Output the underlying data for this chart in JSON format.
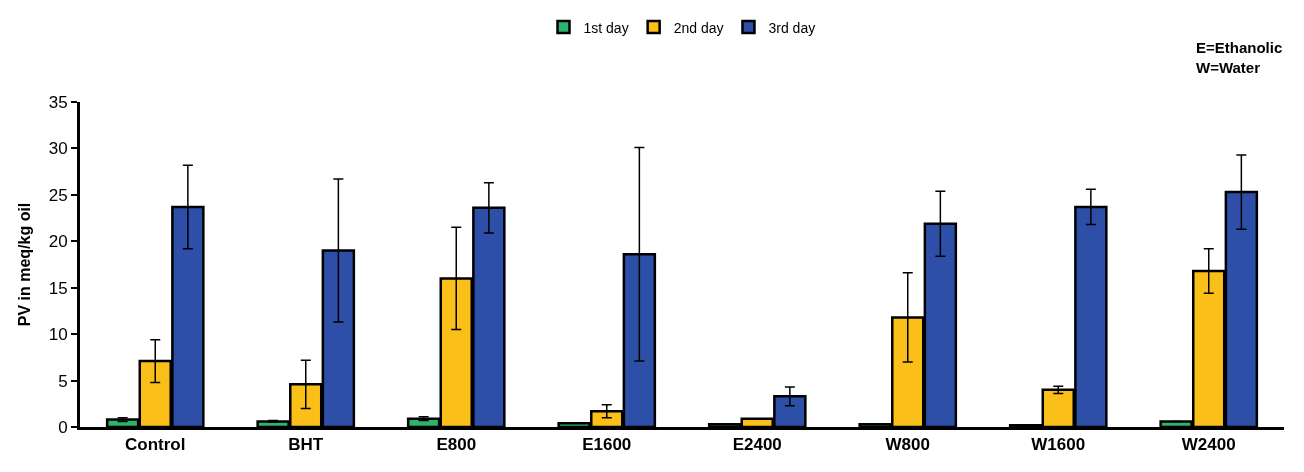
{
  "chart_data": {
    "type": "bar",
    "ylabel": "PV in meq/kg oil",
    "categories": [
      "Control",
      "BHT",
      "E800",
      "E1600",
      "E2400",
      "W800",
      "W1600",
      "W2400"
    ],
    "series": [
      {
        "name": "1st day",
        "color": "#2db36b",
        "values": [
          0.8,
          0.6,
          0.9,
          0.4,
          0.3,
          0.3,
          0.2,
          0.6
        ],
        "errors": [
          0.2,
          0.1,
          0.2,
          null,
          null,
          null,
          null,
          null
        ]
      },
      {
        "name": "2nd day",
        "color": "#fbbf1a",
        "values": [
          7.1,
          4.6,
          16.0,
          1.7,
          0.9,
          11.8,
          4.0,
          16.8
        ],
        "errors": [
          2.3,
          2.6,
          5.5,
          0.7,
          null,
          4.8,
          0.4,
          2.4
        ]
      },
      {
        "name": "3rd day",
        "color": "#2e4fa8",
        "values": [
          23.7,
          19.0,
          23.6,
          18.6,
          3.3,
          21.9,
          23.7,
          25.3
        ],
        "errors": [
          4.5,
          7.7,
          2.7,
          11.5,
          1.0,
          3.5,
          1.9,
          4.0
        ]
      }
    ],
    "ylim": [
      0,
      35
    ],
    "yticks": [
      0,
      5,
      10,
      15,
      20,
      25,
      30,
      35
    ],
    "legend": "top",
    "annotations": [
      "E=Ethanolic\nW=Water"
    ]
  }
}
